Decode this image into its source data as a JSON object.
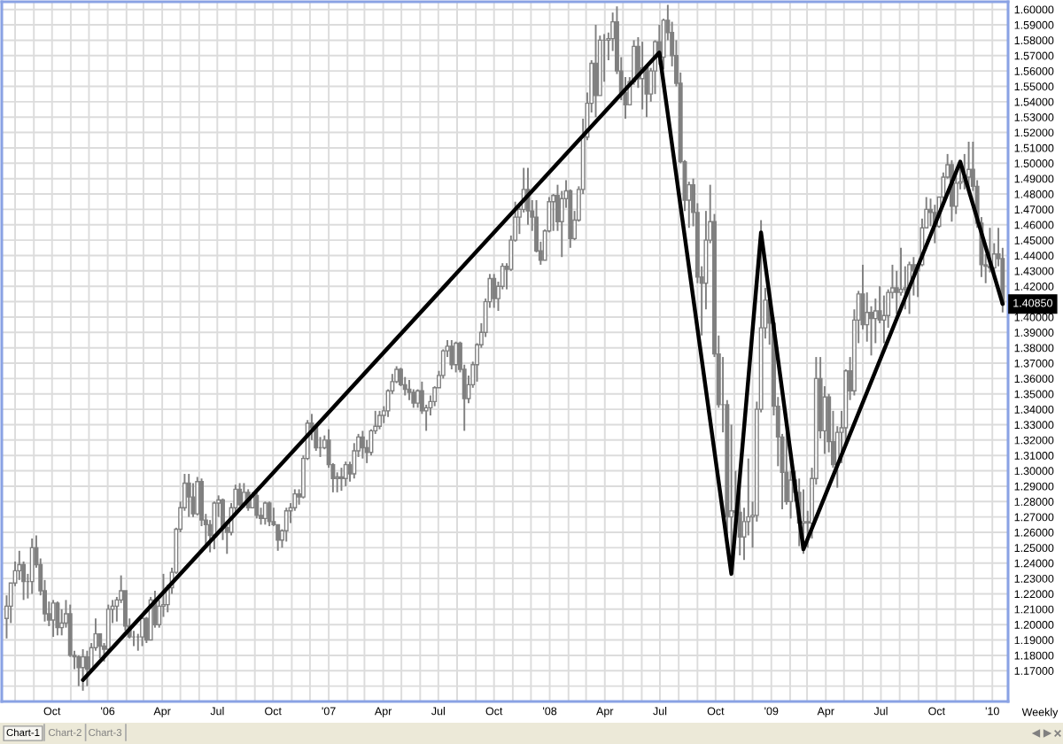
{
  "chart_data": {
    "type": "candlestick",
    "color": "#808080",
    "x": [
      "2005-07-18",
      "2005-07-25",
      "2005-08-01",
      "2005-08-08",
      "2005-08-15",
      "2005-08-22",
      "2005-08-29",
      "2005-09-05",
      "2005-09-12",
      "2005-09-19",
      "2005-09-26",
      "2005-10-03",
      "2005-10-10",
      "2005-10-17",
      "2005-10-24",
      "2005-10-31",
      "2005-11-07",
      "2005-11-14",
      "2005-11-21",
      "2005-11-28",
      "2005-12-05",
      "2005-12-12",
      "2005-12-19",
      "2005-12-26",
      "2006-01-02",
      "2006-01-09",
      "2006-01-16",
      "2006-01-23",
      "2006-01-30",
      "2006-02-06",
      "2006-02-13",
      "2006-02-20",
      "2006-02-27",
      "2006-03-06",
      "2006-03-13",
      "2006-03-20",
      "2006-03-27",
      "2006-04-03",
      "2006-04-10",
      "2006-04-17",
      "2006-04-24",
      "2006-05-01",
      "2006-05-08",
      "2006-05-15",
      "2006-05-22",
      "2006-05-29",
      "2006-06-05",
      "2006-06-12",
      "2006-06-19",
      "2006-06-26",
      "2006-07-03",
      "2006-07-10",
      "2006-07-17",
      "2006-07-24",
      "2006-07-31",
      "2006-08-07",
      "2006-08-14",
      "2006-08-21",
      "2006-08-28",
      "2006-09-04",
      "2006-09-11",
      "2006-09-18",
      "2006-09-25",
      "2006-10-02",
      "2006-10-09",
      "2006-10-16",
      "2006-10-23",
      "2006-10-30",
      "2006-11-06",
      "2006-11-13",
      "2006-11-20",
      "2006-11-27",
      "2006-12-04",
      "2006-12-11",
      "2006-12-18",
      "2006-12-25",
      "2007-01-01",
      "2007-01-08",
      "2007-01-15",
      "2007-01-22",
      "2007-01-29",
      "2007-02-05",
      "2007-02-12",
      "2007-02-19",
      "2007-02-26",
      "2007-03-05",
      "2007-03-12",
      "2007-03-19",
      "2007-03-26",
      "2007-04-02",
      "2007-04-09",
      "2007-04-16",
      "2007-04-23",
      "2007-04-30",
      "2007-05-07",
      "2007-05-14",
      "2007-05-21",
      "2007-05-28",
      "2007-06-04",
      "2007-06-11",
      "2007-06-18",
      "2007-06-25",
      "2007-07-02",
      "2007-07-09",
      "2007-07-16",
      "2007-07-23",
      "2007-07-30",
      "2007-08-06",
      "2007-08-13",
      "2007-08-20",
      "2007-08-27",
      "2007-09-03",
      "2007-09-10",
      "2007-09-17",
      "2007-09-24",
      "2007-10-01",
      "2007-10-08",
      "2007-10-15",
      "2007-10-22",
      "2007-10-29",
      "2007-11-05",
      "2007-11-12",
      "2007-11-19",
      "2007-11-26",
      "2007-12-03",
      "2007-12-10",
      "2007-12-17",
      "2007-12-24",
      "2007-12-31",
      "2008-01-07",
      "2008-01-14",
      "2008-01-21",
      "2008-01-28",
      "2008-02-04",
      "2008-02-11",
      "2008-02-18",
      "2008-02-25",
      "2008-03-03",
      "2008-03-10",
      "2008-03-17",
      "2008-03-24",
      "2008-03-31",
      "2008-04-07",
      "2008-04-14",
      "2008-04-21",
      "2008-04-28",
      "2008-05-05",
      "2008-05-12",
      "2008-05-19",
      "2008-05-26",
      "2008-06-02",
      "2008-06-09",
      "2008-06-16",
      "2008-06-23",
      "2008-06-30",
      "2008-07-07",
      "2008-07-14",
      "2008-07-21",
      "2008-07-28",
      "2008-08-04",
      "2008-08-11",
      "2008-08-18",
      "2008-08-25",
      "2008-09-01",
      "2008-09-08",
      "2008-09-15",
      "2008-09-22",
      "2008-09-29",
      "2008-10-06",
      "2008-10-13",
      "2008-10-20",
      "2008-10-27",
      "2008-11-03",
      "2008-11-10",
      "2008-11-17",
      "2008-11-24",
      "2008-12-01",
      "2008-12-08",
      "2008-12-15",
      "2008-12-22",
      "2008-12-29",
      "2009-01-05",
      "2009-01-12",
      "2009-01-19",
      "2009-01-26",
      "2009-02-02",
      "2009-02-09",
      "2009-02-16",
      "2009-02-23",
      "2009-03-02",
      "2009-03-09",
      "2009-03-16",
      "2009-03-23",
      "2009-03-30",
      "2009-04-06",
      "2009-04-13",
      "2009-04-20",
      "2009-04-27",
      "2009-05-04",
      "2009-05-11",
      "2009-05-18",
      "2009-05-25",
      "2009-06-01",
      "2009-06-08",
      "2009-06-15",
      "2009-06-22",
      "2009-06-29",
      "2009-07-06",
      "2009-07-13",
      "2009-07-20",
      "2009-07-27",
      "2009-08-03",
      "2009-08-10",
      "2009-08-17",
      "2009-08-24",
      "2009-08-31",
      "2009-09-07",
      "2009-09-14",
      "2009-09-21",
      "2009-09-28",
      "2009-10-05",
      "2009-10-12",
      "2009-10-19",
      "2009-10-26",
      "2009-11-02",
      "2009-11-09",
      "2009-11-16",
      "2009-11-23",
      "2009-11-30",
      "2009-12-07",
      "2009-12-14",
      "2009-12-21",
      "2009-12-28",
      "2010-01-04",
      "2010-01-11",
      "2010-01-18"
    ],
    "ohlc": [
      [
        1.204,
        1.219,
        1.191,
        1.212
      ],
      [
        1.212,
        1.227,
        1.201,
        1.227
      ],
      [
        1.227,
        1.241,
        1.225,
        1.235
      ],
      [
        1.235,
        1.248,
        1.229,
        1.239
      ],
      [
        1.239,
        1.241,
        1.216,
        1.228
      ],
      [
        1.228,
        1.233,
        1.217,
        1.228
      ],
      [
        1.228,
        1.256,
        1.22,
        1.25
      ],
      [
        1.25,
        1.258,
        1.237,
        1.239
      ],
      [
        1.239,
        1.243,
        1.219,
        1.222
      ],
      [
        1.222,
        1.229,
        1.202,
        1.207
      ],
      [
        1.207,
        1.215,
        1.199,
        1.203
      ],
      [
        1.203,
        1.216,
        1.192,
        1.214
      ],
      [
        1.214,
        1.215,
        1.193,
        1.198
      ],
      [
        1.198,
        1.21,
        1.193,
        1.201
      ],
      [
        1.201,
        1.216,
        1.198,
        1.207
      ],
      [
        1.207,
        1.213,
        1.179,
        1.18
      ],
      [
        1.18,
        1.183,
        1.171,
        1.179
      ],
      [
        1.179,
        1.18,
        1.16,
        1.172
      ],
      [
        1.172,
        1.184,
        1.157,
        1.179
      ],
      [
        1.179,
        1.183,
        1.16,
        1.171
      ],
      [
        1.171,
        1.188,
        1.17,
        1.185
      ],
      [
        1.185,
        1.204,
        1.183,
        1.194
      ],
      [
        1.194,
        1.194,
        1.178,
        1.186
      ],
      [
        1.186,
        1.188,
        1.176,
        1.184
      ],
      [
        1.184,
        1.213,
        1.182,
        1.21
      ],
      [
        1.21,
        1.216,
        1.201,
        1.212
      ],
      [
        1.212,
        1.218,
        1.202,
        1.216
      ],
      [
        1.216,
        1.232,
        1.214,
        1.222
      ],
      [
        1.222,
        1.222,
        1.196,
        1.199
      ],
      [
        1.199,
        1.204,
        1.191,
        1.192
      ],
      [
        1.192,
        1.196,
        1.186,
        1.192
      ],
      [
        1.192,
        1.194,
        1.183,
        1.192
      ],
      [
        1.192,
        1.206,
        1.186,
        1.204
      ],
      [
        1.204,
        1.205,
        1.188,
        1.19
      ],
      [
        1.19,
        1.218,
        1.19,
        1.216
      ],
      [
        1.216,
        1.222,
        1.198,
        1.2
      ],
      [
        1.2,
        1.216,
        1.198,
        1.212
      ],
      [
        1.212,
        1.233,
        1.205,
        1.213
      ],
      [
        1.213,
        1.226,
        1.208,
        1.224
      ],
      [
        1.224,
        1.237,
        1.22,
        1.234
      ],
      [
        1.234,
        1.263,
        1.233,
        1.262
      ],
      [
        1.262,
        1.28,
        1.26,
        1.276
      ],
      [
        1.276,
        1.298,
        1.274,
        1.292
      ],
      [
        1.292,
        1.298,
        1.27,
        1.283
      ],
      [
        1.283,
        1.292,
        1.27,
        1.272
      ],
      [
        1.272,
        1.296,
        1.271,
        1.293
      ],
      [
        1.293,
        1.295,
        1.264,
        1.268
      ],
      [
        1.268,
        1.272,
        1.251,
        1.265
      ],
      [
        1.265,
        1.268,
        1.247,
        1.258
      ],
      [
        1.258,
        1.28,
        1.249,
        1.279
      ],
      [
        1.279,
        1.284,
        1.27,
        1.281
      ],
      [
        1.281,
        1.282,
        1.255,
        1.263
      ],
      [
        1.263,
        1.267,
        1.246,
        1.26
      ],
      [
        1.26,
        1.279,
        1.258,
        1.276
      ],
      [
        1.276,
        1.291,
        1.271,
        1.288
      ],
      [
        1.288,
        1.292,
        1.277,
        1.278
      ],
      [
        1.278,
        1.292,
        1.276,
        1.286
      ],
      [
        1.286,
        1.288,
        1.274,
        1.276
      ],
      [
        1.276,
        1.286,
        1.276,
        1.284
      ],
      [
        1.284,
        1.286,
        1.269,
        1.271
      ],
      [
        1.271,
        1.276,
        1.265,
        1.269
      ],
      [
        1.269,
        1.28,
        1.265,
        1.279
      ],
      [
        1.279,
        1.28,
        1.264,
        1.267
      ],
      [
        1.267,
        1.276,
        1.264,
        1.265
      ],
      [
        1.265,
        1.265,
        1.248,
        1.255
      ],
      [
        1.255,
        1.262,
        1.25,
        1.261
      ],
      [
        1.261,
        1.276,
        1.254,
        1.274
      ],
      [
        1.274,
        1.279,
        1.266,
        1.276
      ],
      [
        1.276,
        1.288,
        1.274,
        1.285
      ],
      [
        1.285,
        1.288,
        1.278,
        1.283
      ],
      [
        1.283,
        1.31,
        1.282,
        1.308
      ],
      [
        1.308,
        1.333,
        1.307,
        1.331
      ],
      [
        1.331,
        1.337,
        1.32,
        1.328
      ],
      [
        1.328,
        1.33,
        1.313,
        1.315
      ],
      [
        1.315,
        1.322,
        1.309,
        1.315
      ],
      [
        1.315,
        1.323,
        1.314,
        1.32
      ],
      [
        1.32,
        1.327,
        1.302,
        1.304
      ],
      [
        1.304,
        1.305,
        1.286,
        1.295
      ],
      [
        1.295,
        1.299,
        1.286,
        1.296
      ],
      [
        1.296,
        1.302,
        1.287,
        1.295
      ],
      [
        1.295,
        1.306,
        1.29,
        1.304
      ],
      [
        1.304,
        1.306,
        1.293,
        1.298
      ],
      [
        1.298,
        1.318,
        1.295,
        1.313
      ],
      [
        1.313,
        1.324,
        1.309,
        1.322
      ],
      [
        1.322,
        1.326,
        1.308,
        1.315
      ],
      [
        1.315,
        1.32,
        1.305,
        1.312
      ],
      [
        1.312,
        1.327,
        1.31,
        1.326
      ],
      [
        1.326,
        1.339,
        1.324,
        1.329
      ],
      [
        1.329,
        1.339,
        1.327,
        1.336
      ],
      [
        1.336,
        1.342,
        1.331,
        1.339
      ],
      [
        1.339,
        1.353,
        1.335,
        1.352
      ],
      [
        1.352,
        1.363,
        1.35,
        1.358
      ],
      [
        1.358,
        1.368,
        1.357,
        1.366
      ],
      [
        1.366,
        1.367,
        1.355,
        1.356
      ],
      [
        1.356,
        1.361,
        1.349,
        1.353
      ],
      [
        1.353,
        1.359,
        1.346,
        1.351
      ],
      [
        1.351,
        1.353,
        1.341,
        1.344
      ],
      [
        1.344,
        1.353,
        1.341,
        1.352
      ],
      [
        1.352,
        1.358,
        1.337,
        1.339
      ],
      [
        1.339,
        1.343,
        1.326,
        1.341
      ],
      [
        1.341,
        1.349,
        1.336,
        1.345
      ],
      [
        1.345,
        1.355,
        1.342,
        1.354
      ],
      [
        1.354,
        1.365,
        1.354,
        1.362
      ],
      [
        1.362,
        1.379,
        1.36,
        1.378
      ],
      [
        1.378,
        1.385,
        1.374,
        1.381
      ],
      [
        1.381,
        1.385,
        1.366,
        1.369
      ],
      [
        1.369,
        1.384,
        1.364,
        1.383
      ],
      [
        1.383,
        1.384,
        1.364,
        1.366
      ],
      [
        1.366,
        1.369,
        1.326,
        1.347
      ],
      [
        1.347,
        1.362,
        1.344,
        1.356
      ],
      [
        1.356,
        1.371,
        1.354,
        1.369
      ],
      [
        1.369,
        1.383,
        1.358,
        1.382
      ],
      [
        1.382,
        1.396,
        1.38,
        1.39
      ],
      [
        1.39,
        1.412,
        1.387,
        1.41
      ],
      [
        1.41,
        1.428,
        1.406,
        1.425
      ],
      [
        1.425,
        1.428,
        1.406,
        1.412
      ],
      [
        1.412,
        1.423,
        1.404,
        1.42
      ],
      [
        1.42,
        1.435,
        1.418,
        1.433
      ],
      [
        1.433,
        1.435,
        1.418,
        1.431
      ],
      [
        1.431,
        1.453,
        1.43,
        1.45
      ],
      [
        1.45,
        1.475,
        1.449,
        1.465
      ],
      [
        1.465,
        1.474,
        1.454,
        1.47
      ],
      [
        1.47,
        1.497,
        1.468,
        1.483
      ],
      [
        1.483,
        1.497,
        1.46,
        1.469
      ],
      [
        1.469,
        1.476,
        1.456,
        1.465
      ],
      [
        1.465,
        1.476,
        1.442,
        1.443
      ],
      [
        1.443,
        1.449,
        1.434,
        1.437
      ],
      [
        1.437,
        1.457,
        1.437,
        1.456
      ],
      [
        1.456,
        1.478,
        1.455,
        1.475
      ],
      [
        1.475,
        1.48,
        1.456,
        1.479
      ],
      [
        1.479,
        1.486,
        1.456,
        1.462
      ],
      [
        1.462,
        1.482,
        1.439,
        1.477
      ],
      [
        1.477,
        1.489,
        1.471,
        1.482
      ],
      [
        1.482,
        1.483,
        1.445,
        1.451
      ],
      [
        1.451,
        1.469,
        1.45,
        1.463
      ],
      [
        1.463,
        1.485,
        1.462,
        1.483
      ],
      [
        1.483,
        1.529,
        1.48,
        1.517
      ],
      [
        1.517,
        1.546,
        1.515,
        1.539
      ],
      [
        1.539,
        1.567,
        1.533,
        1.565
      ],
      [
        1.565,
        1.59,
        1.53,
        1.544
      ],
      [
        1.544,
        1.583,
        1.544,
        1.58
      ],
      [
        1.58,
        1.584,
        1.553,
        1.58
      ],
      [
        1.58,
        1.585,
        1.567,
        1.581
      ],
      [
        1.581,
        1.598,
        1.573,
        1.592
      ],
      [
        1.592,
        1.602,
        1.558,
        1.56
      ],
      [
        1.56,
        1.569,
        1.541,
        1.546
      ],
      [
        1.546,
        1.556,
        1.529,
        1.538
      ],
      [
        1.538,
        1.556,
        1.538,
        1.553
      ],
      [
        1.553,
        1.58,
        1.551,
        1.576
      ],
      [
        1.576,
        1.582,
        1.549,
        1.555
      ],
      [
        1.555,
        1.579,
        1.535,
        1.562
      ],
      [
        1.562,
        1.562,
        1.53,
        1.545
      ],
      [
        1.545,
        1.562,
        1.54,
        1.56
      ],
      [
        1.56,
        1.58,
        1.545,
        1.579
      ],
      [
        1.579,
        1.59,
        1.564,
        1.569
      ],
      [
        1.569,
        1.594,
        1.561,
        1.593
      ],
      [
        1.593,
        1.603,
        1.58,
        1.585
      ],
      [
        1.585,
        1.592,
        1.563,
        1.57
      ],
      [
        1.57,
        1.58,
        1.55,
        1.552
      ],
      [
        1.552,
        1.559,
        1.5,
        1.501
      ],
      [
        1.501,
        1.502,
        1.469,
        1.476
      ],
      [
        1.476,
        1.488,
        1.458,
        1.486
      ],
      [
        1.486,
        1.49,
        1.459,
        1.468
      ],
      [
        1.468,
        1.474,
        1.422,
        1.426
      ],
      [
        1.426,
        1.433,
        1.388,
        1.422
      ],
      [
        1.422,
        1.469,
        1.405,
        1.45
      ],
      [
        1.45,
        1.486,
        1.448,
        1.462
      ],
      [
        1.462,
        1.467,
        1.374,
        1.376
      ],
      [
        1.376,
        1.388,
        1.341,
        1.343
      ],
      [
        1.343,
        1.374,
        1.325,
        1.343
      ],
      [
        1.343,
        1.346,
        1.249,
        1.27
      ],
      [
        1.27,
        1.33,
        1.233,
        1.274
      ],
      [
        1.274,
        1.3,
        1.263,
        1.273
      ],
      [
        1.273,
        1.291,
        1.245,
        1.257
      ],
      [
        1.257,
        1.276,
        1.242,
        1.267
      ],
      [
        1.267,
        1.308,
        1.258,
        1.27
      ],
      [
        1.27,
        1.28,
        1.25,
        1.271
      ],
      [
        1.271,
        1.345,
        1.267,
        1.34
      ],
      [
        1.34,
        1.463,
        1.338,
        1.393
      ],
      [
        1.393,
        1.419,
        1.386,
        1.411
      ],
      [
        1.411,
        1.414,
        1.382,
        1.396
      ],
      [
        1.396,
        1.4,
        1.336,
        1.342
      ],
      [
        1.342,
        1.348,
        1.303,
        1.322
      ],
      [
        1.322,
        1.324,
        1.275,
        1.299
      ],
      [
        1.299,
        1.333,
        1.278,
        1.28
      ],
      [
        1.28,
        1.3,
        1.269,
        1.294
      ],
      [
        1.294,
        1.3,
        1.28,
        1.286
      ],
      [
        1.286,
        1.295,
        1.251,
        1.266
      ],
      [
        1.266,
        1.288,
        1.246,
        1.267
      ],
      [
        1.267,
        1.274,
        1.25,
        1.266
      ],
      [
        1.266,
        1.302,
        1.256,
        1.295
      ],
      [
        1.295,
        1.374,
        1.291,
        1.36
      ],
      [
        1.36,
        1.374,
        1.321,
        1.326
      ],
      [
        1.326,
        1.355,
        1.311,
        1.348
      ],
      [
        1.348,
        1.35,
        1.312,
        1.319
      ],
      [
        1.319,
        1.339,
        1.302,
        1.304
      ],
      [
        1.304,
        1.329,
        1.289,
        1.325
      ],
      [
        1.325,
        1.339,
        1.305,
        1.328
      ],
      [
        1.328,
        1.366,
        1.318,
        1.365
      ],
      [
        1.365,
        1.374,
        1.346,
        1.352
      ],
      [
        1.352,
        1.405,
        1.349,
        1.398
      ],
      [
        1.398,
        1.417,
        1.383,
        1.415
      ],
      [
        1.415,
        1.434,
        1.392,
        1.395
      ],
      [
        1.395,
        1.416,
        1.384,
        1.403
      ],
      [
        1.403,
        1.407,
        1.375,
        1.399
      ],
      [
        1.399,
        1.412,
        1.383,
        1.404
      ],
      [
        1.404,
        1.42,
        1.396,
        1.398
      ],
      [
        1.398,
        1.414,
        1.383,
        1.401
      ],
      [
        1.401,
        1.418,
        1.393,
        1.416
      ],
      [
        1.416,
        1.434,
        1.412,
        1.419
      ],
      [
        1.419,
        1.43,
        1.402,
        1.416
      ],
      [
        1.416,
        1.445,
        1.414,
        1.418
      ],
      [
        1.418,
        1.433,
        1.405,
        1.419
      ],
      [
        1.419,
        1.436,
        1.402,
        1.434
      ],
      [
        1.434,
        1.439,
        1.414,
        1.43
      ],
      [
        1.43,
        1.435,
        1.413,
        1.434
      ],
      [
        1.434,
        1.464,
        1.433,
        1.458
      ],
      [
        1.458,
        1.478,
        1.458,
        1.47
      ],
      [
        1.47,
        1.477,
        1.459,
        1.468
      ],
      [
        1.468,
        1.473,
        1.448,
        1.459
      ],
      [
        1.459,
        1.478,
        1.458,
        1.478
      ],
      [
        1.478,
        1.494,
        1.473,
        1.491
      ],
      [
        1.491,
        1.506,
        1.49,
        1.499
      ],
      [
        1.499,
        1.502,
        1.462,
        1.472
      ],
      [
        1.472,
        1.495,
        1.467,
        1.487
      ],
      [
        1.487,
        1.501,
        1.483,
        1.488
      ],
      [
        1.488,
        1.506,
        1.483,
        1.491
      ],
      [
        1.491,
        1.514,
        1.483,
        1.496
      ],
      [
        1.496,
        1.514,
        1.482,
        1.485
      ],
      [
        1.485,
        1.489,
        1.458,
        1.461
      ],
      [
        1.461,
        1.465,
        1.426,
        1.434
      ],
      [
        1.434,
        1.441,
        1.422,
        1.433
      ],
      [
        1.433,
        1.458,
        1.429,
        1.432
      ],
      [
        1.432,
        1.448,
        1.425,
        1.441
      ],
      [
        1.441,
        1.458,
        1.433,
        1.438
      ],
      [
        1.438,
        1.445,
        1.403,
        1.4085
      ]
    ],
    "series": [
      {
        "type": "line",
        "color": "#000000",
        "x": [
          "2005-11-21",
          "2008-06-30",
          "2008-10-27",
          "2008-12-15",
          "2009-02-23",
          "2009-11-09",
          "2010-01-18"
        ],
        "values": [
          1.164,
          1.572,
          1.233,
          1.455,
          1.249,
          1.501,
          1.4085
        ]
      }
    ],
    "xlim": [
      "2005-07-10",
      "2010-01-27"
    ],
    "ylim": [
      1.15,
      1.605
    ],
    "xticks": [
      {
        "value": "2005-08-01",
        "label": null
      },
      {
        "value": "2005-09-01",
        "label": null
      },
      {
        "value": "2005-10-01",
        "label": "Oct"
      },
      {
        "value": "2005-11-01",
        "label": null
      },
      {
        "value": "2005-12-01",
        "label": null
      },
      {
        "value": "2006-01-01",
        "label": "'06"
      },
      {
        "value": "2006-02-01",
        "label": null
      },
      {
        "value": "2006-03-01",
        "label": null
      },
      {
        "value": "2006-04-01",
        "label": "Apr"
      },
      {
        "value": "2006-05-01",
        "label": null
      },
      {
        "value": "2006-06-01",
        "label": null
      },
      {
        "value": "2006-07-01",
        "label": "Jul"
      },
      {
        "value": "2006-08-01",
        "label": null
      },
      {
        "value": "2006-09-01",
        "label": null
      },
      {
        "value": "2006-10-01",
        "label": "Oct"
      },
      {
        "value": "2006-11-01",
        "label": null
      },
      {
        "value": "2006-12-01",
        "label": null
      },
      {
        "value": "2007-01-01",
        "label": "'07"
      },
      {
        "value": "2007-02-01",
        "label": null
      },
      {
        "value": "2007-03-01",
        "label": null
      },
      {
        "value": "2007-04-01",
        "label": "Apr"
      },
      {
        "value": "2007-05-01",
        "label": null
      },
      {
        "value": "2007-06-01",
        "label": null
      },
      {
        "value": "2007-07-01",
        "label": "Jul"
      },
      {
        "value": "2007-08-01",
        "label": null
      },
      {
        "value": "2007-09-01",
        "label": null
      },
      {
        "value": "2007-10-01",
        "label": "Oct"
      },
      {
        "value": "2007-11-01",
        "label": null
      },
      {
        "value": "2007-12-01",
        "label": null
      },
      {
        "value": "2008-01-01",
        "label": "'08"
      },
      {
        "value": "2008-02-01",
        "label": null
      },
      {
        "value": "2008-03-01",
        "label": null
      },
      {
        "value": "2008-04-01",
        "label": "Apr"
      },
      {
        "value": "2008-05-01",
        "label": null
      },
      {
        "value": "2008-06-01",
        "label": null
      },
      {
        "value": "2008-07-01",
        "label": "Jul"
      },
      {
        "value": "2008-08-01",
        "label": null
      },
      {
        "value": "2008-09-01",
        "label": null
      },
      {
        "value": "2008-10-01",
        "label": "Oct"
      },
      {
        "value": "2008-11-01",
        "label": null
      },
      {
        "value": "2008-12-01",
        "label": null
      },
      {
        "value": "2009-01-01",
        "label": "'09"
      },
      {
        "value": "2009-02-01",
        "label": null
      },
      {
        "value": "2009-03-01",
        "label": null
      },
      {
        "value": "2009-04-01",
        "label": "Apr"
      },
      {
        "value": "2009-05-01",
        "label": null
      },
      {
        "value": "2009-06-01",
        "label": null
      },
      {
        "value": "2009-07-01",
        "label": "Jul"
      },
      {
        "value": "2009-08-01",
        "label": null
      },
      {
        "value": "2009-09-01",
        "label": null
      },
      {
        "value": "2009-10-01",
        "label": "Oct"
      },
      {
        "value": "2009-11-01",
        "label": null
      },
      {
        "value": "2009-12-01",
        "label": null
      },
      {
        "value": "2010-01-01",
        "label": "'10"
      }
    ],
    "yticks": [
      {
        "value": 1.16,
        "label": null
      },
      {
        "value": 1.17,
        "label": "1.17000"
      },
      {
        "value": 1.18,
        "label": "1.18000"
      },
      {
        "value": 1.19,
        "label": "1.19000"
      },
      {
        "value": 1.2,
        "label": "1.20000"
      },
      {
        "value": 1.21,
        "label": "1.21000"
      },
      {
        "value": 1.22,
        "label": "1.22000"
      },
      {
        "value": 1.23,
        "label": "1.23000"
      },
      {
        "value": 1.24,
        "label": "1.24000"
      },
      {
        "value": 1.25,
        "label": "1.25000"
      },
      {
        "value": 1.26,
        "label": "1.26000"
      },
      {
        "value": 1.27,
        "label": "1.27000"
      },
      {
        "value": 1.28,
        "label": "1.28000"
      },
      {
        "value": 1.29,
        "label": "1.29000"
      },
      {
        "value": 1.3,
        "label": "1.30000"
      },
      {
        "value": 1.31,
        "label": "1.31000"
      },
      {
        "value": 1.32,
        "label": "1.32000"
      },
      {
        "value": 1.33,
        "label": "1.33000"
      },
      {
        "value": 1.34,
        "label": "1.34000"
      },
      {
        "value": 1.35,
        "label": "1.35000"
      },
      {
        "value": 1.36,
        "label": "1.36000"
      },
      {
        "value": 1.37,
        "label": "1.37000"
      },
      {
        "value": 1.38,
        "label": "1.38000"
      },
      {
        "value": 1.39,
        "label": "1.39000"
      },
      {
        "value": 1.4,
        "label": "1.40000"
      },
      {
        "value": 1.41,
        "label": null
      },
      {
        "value": 1.42,
        "label": "1.42000"
      },
      {
        "value": 1.43,
        "label": "1.43000"
      },
      {
        "value": 1.44,
        "label": "1.44000"
      },
      {
        "value": 1.45,
        "label": "1.45000"
      },
      {
        "value": 1.46,
        "label": "1.46000"
      },
      {
        "value": 1.47,
        "label": "1.47000"
      },
      {
        "value": 1.48,
        "label": "1.48000"
      },
      {
        "value": 1.49,
        "label": "1.49000"
      },
      {
        "value": 1.5,
        "label": "1.50000"
      },
      {
        "value": 1.51,
        "label": "1.51000"
      },
      {
        "value": 1.52,
        "label": "1.52000"
      },
      {
        "value": 1.53,
        "label": "1.53000"
      },
      {
        "value": 1.54,
        "label": "1.54000"
      },
      {
        "value": 1.55,
        "label": "1.55000"
      },
      {
        "value": 1.56,
        "label": "1.56000"
      },
      {
        "value": 1.57,
        "label": "1.57000"
      },
      {
        "value": 1.58,
        "label": "1.58000"
      },
      {
        "value": 1.59,
        "label": "1.59000"
      },
      {
        "value": 1.6,
        "label": "1.60000"
      }
    ],
    "grid": true,
    "annotations": [
      {
        "text": "1.40850",
        "y": 1.4085
      },
      "Weekly",
      "Chart-1",
      "Chart-2",
      "Chart-3"
    ]
  }
}
